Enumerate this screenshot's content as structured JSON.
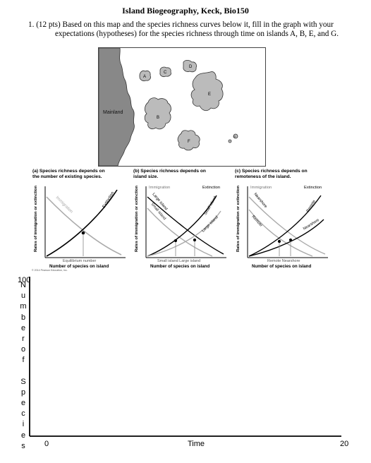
{
  "doc": {
    "title": "Island Biogeography, Keck, Bio150",
    "question_line1": "1. (12 pts) Based on this map and the species richness curves below it, fill in the graph with your",
    "question_line2": "expectations (hypotheses) for the species richness through time on islands A, B, E, and G."
  },
  "map": {
    "mainland_label": "Mainland",
    "island_labels": [
      "A",
      "C",
      "D",
      "E",
      "B",
      "F",
      "G"
    ]
  },
  "panels": [
    {
      "caption_line1": "(a) Species richness depends on",
      "caption_line2": "the number of existing species.",
      "ylabel": "Rates of immigration or extinction",
      "curve_labels": [
        "Immigration",
        "Extinction"
      ],
      "xtick": "Equilibrium number",
      "xlabel": "Number of species on island"
    },
    {
      "caption_line1": "(b) Species richness depends on",
      "caption_line2": "island size.",
      "ylabel": "Rates of immigration or extinction",
      "top_left": "Immigration",
      "top_right": "Extinction",
      "curve_labels": [
        "Large island",
        "Small island",
        "Small island",
        "Large island"
      ],
      "xtick": "Small island   Large island",
      "xlabel": "Number of species on island"
    },
    {
      "caption_line1": "(c) Species richness depends on",
      "caption_line2": "remoteness of the island.",
      "ylabel": "Rates of immigration or extinction",
      "top_left": "Immigration",
      "top_right": "Extinction",
      "curve_labels": [
        "Nearshore",
        "Remote",
        "Remote",
        "Nearshore"
      ],
      "xtick": "Remote   Nearshore",
      "xlabel": "Number of species on island"
    }
  ],
  "copyright": "© 2014 Pearson Education, Inc.",
  "graph": {
    "y_max": "100",
    "y_label_letters": [
      "N",
      "u",
      "m",
      "b",
      "e",
      "r",
      "o",
      "f",
      "",
      "S",
      "p",
      "e",
      "c",
      "i",
      "e",
      "s"
    ],
    "x_min": "0",
    "x_label": "Time",
    "x_max": "20"
  }
}
